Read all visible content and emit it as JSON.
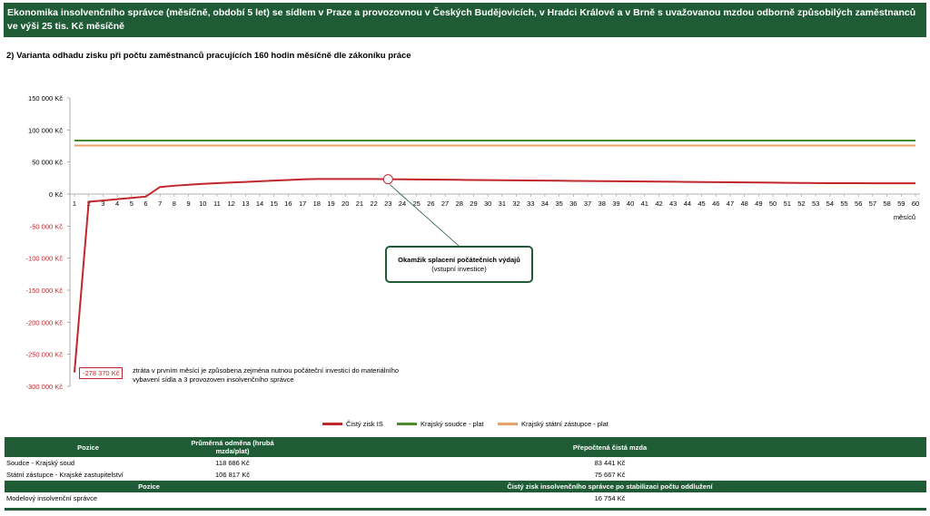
{
  "header": {
    "title": "Ekonomika insolvenčního správce (měsíčně, období 5 let) se sídlem v Praze a provozovnou v Českých Budějovicích, v Hradci Králové a v Brně s uvažovanou mzdou odborně způsobilých zaměstnanců ve výši 25 tis. Kč měsíčně"
  },
  "subtitle": "2) Varianta odhadu zisku při počtu zaměstnanců pracujících 160 hodin měsíčně dle zákoníku práce",
  "chart_data": {
    "type": "line",
    "xlabel": "měsíců",
    "ylabel": "",
    "ylim": [
      -300000,
      150000
    ],
    "yticks": [
      150000,
      100000,
      50000,
      0,
      -50000,
      -100000,
      -150000,
      -200000,
      -250000,
      -300000
    ],
    "ytick_labels": [
      "150 000 Kč",
      "100 000 Kč",
      "50 000 Kč",
      "0 Kč",
      "-50 000 Kč",
      "-100 000 Kč",
      "-150 000 Kč",
      "-200 000 Kč",
      "-250 000 Kč",
      "-300 000 Kč"
    ],
    "x": [
      1,
      2,
      3,
      4,
      5,
      6,
      7,
      8,
      9,
      10,
      11,
      12,
      13,
      14,
      15,
      16,
      17,
      18,
      19,
      20,
      21,
      22,
      23,
      24,
      25,
      26,
      27,
      28,
      29,
      30,
      31,
      32,
      33,
      34,
      35,
      36,
      37,
      38,
      39,
      40,
      41,
      42,
      43,
      44,
      45,
      46,
      47,
      48,
      49,
      50,
      51,
      52,
      53,
      54,
      55,
      56,
      57,
      58,
      59,
      60
    ],
    "grid": false,
    "legend_position": "bottom",
    "series": [
      {
        "name": "Čistý zisk IS",
        "color": "#c0272d",
        "values": [
          -278370,
          -12000,
          -10000,
          -8000,
          -6000,
          -4000,
          11000,
          13000,
          14500,
          16000,
          17000,
          18000,
          19000,
          20000,
          21000,
          22000,
          23000,
          23500,
          23500,
          23500,
          23500,
          23500,
          23200,
          23000,
          22800,
          22600,
          22400,
          22200,
          22000,
          21800,
          21600,
          21400,
          21200,
          21000,
          20800,
          20600,
          20400,
          20200,
          20000,
          19800,
          19600,
          19400,
          19200,
          19000,
          18800,
          18600,
          18400,
          18200,
          18000,
          17800,
          17600,
          17400,
          17200,
          17000,
          16950,
          16900,
          16850,
          16800,
          16780,
          16754
        ]
      },
      {
        "name": "Krajský soudce - plat",
        "color": "#4b8b2c",
        "values": [
          83441,
          83441,
          83441,
          83441,
          83441,
          83441,
          83441,
          83441,
          83441,
          83441,
          83441,
          83441,
          83441,
          83441,
          83441,
          83441,
          83441,
          83441,
          83441,
          83441,
          83441,
          83441,
          83441,
          83441,
          83441,
          83441,
          83441,
          83441,
          83441,
          83441,
          83441,
          83441,
          83441,
          83441,
          83441,
          83441,
          83441,
          83441,
          83441,
          83441,
          83441,
          83441,
          83441,
          83441,
          83441,
          83441,
          83441,
          83441,
          83441,
          83441,
          83441,
          83441,
          83441,
          83441,
          83441,
          83441,
          83441,
          83441,
          83441,
          83441
        ]
      },
      {
        "name": "Krajský státní zástupce - plat",
        "color": "#e8a36a",
        "values": [
          75667,
          75667,
          75667,
          75667,
          75667,
          75667,
          75667,
          75667,
          75667,
          75667,
          75667,
          75667,
          75667,
          75667,
          75667,
          75667,
          75667,
          75667,
          75667,
          75667,
          75667,
          75667,
          75667,
          75667,
          75667,
          75667,
          75667,
          75667,
          75667,
          75667,
          75667,
          75667,
          75667,
          75667,
          75667,
          75667,
          75667,
          75667,
          75667,
          75667,
          75667,
          75667,
          75667,
          75667,
          75667,
          75667,
          75667,
          75667,
          75667,
          75667,
          75667,
          75667,
          75667,
          75667,
          75667,
          75667,
          75667,
          75667,
          75667,
          75667
        ]
      }
    ],
    "annotations": {
      "callout_title": "Okamžik splacení počátečních výdajů",
      "callout_sub": "(vstupní investice)",
      "callout_month": 23,
      "first_value_label": "-278 370 Kč",
      "loss_note": "ztráta v prvním měsíci je způsobena zejména nutnou počáteční investicí do materiálního vybavení sídla a 3 provozoven insolvenčního správce"
    }
  },
  "table": {
    "h1_pozice": "Pozice",
    "h1_odmena": "Průměrná odměna (hrubá mzda/plat)",
    "h1_cista": "Přepočtená čistá mzda",
    "rows": [
      {
        "pozice": "Soudce - Krajský soud",
        "odmena": "118 686 Kč",
        "cista": "83 441 Kč"
      },
      {
        "pozice": "Státní zástupce - Krajské zastupitelství",
        "odmena": "106 817 Kč",
        "cista": "75 667 Kč"
      }
    ],
    "h2_pozice": "Pozice",
    "h2_zisk": "Čistý zisk insolvenčního správce po stabilizaci počtu oddlužení",
    "model_row": {
      "pozice": "Modelový insolvenční správce",
      "zisk": "16 754 Kč"
    }
  }
}
